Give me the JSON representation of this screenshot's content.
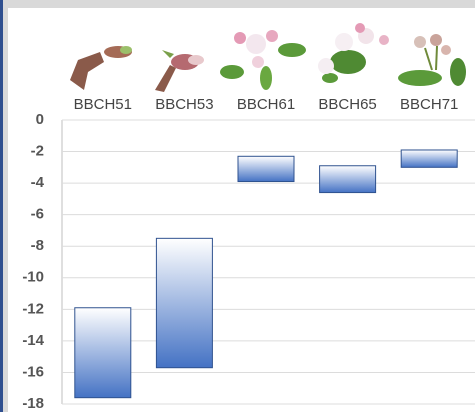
{
  "chart_data": {
    "type": "floating_bar",
    "categories": [
      "BBCH51",
      "BBCH53",
      "BBCH61",
      "BBCH65",
      "BBCH71"
    ],
    "high": [
      -11.9,
      -7.5,
      -2.3,
      -2.9,
      -1.9
    ],
    "low": [
      -17.6,
      -15.7,
      -3.9,
      -4.6,
      -3.0
    ],
    "color": "#4472c4",
    "ylim": [
      -18,
      0
    ],
    "yticks": [
      0,
      -2,
      -4,
      -6,
      -8,
      -10,
      -12,
      -14,
      -16,
      -18
    ],
    "grid": true
  }
}
